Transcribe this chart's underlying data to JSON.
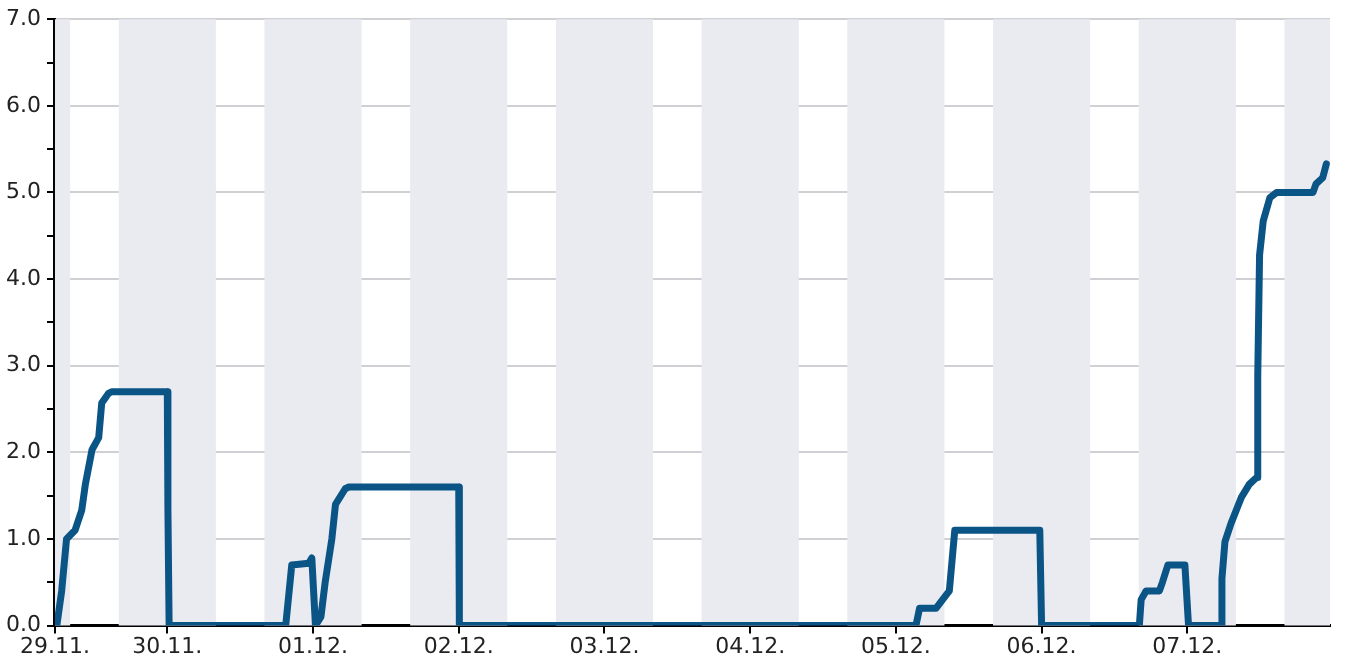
{
  "chart_data": {
    "type": "line",
    "x": [
      "--11-29T05:30",
      "--11-29T05:48",
      "--11-29T06:36",
      "--11-29T07:24",
      "--11-29T08:48",
      "--11-29T09:54",
      "--11-29T10:30",
      "--11-29T11:36",
      "--11-29T12:42",
      "--11-29T13:12",
      "--11-29T14:18",
      "--11-29T14:54",
      "--11-30T00:00",
      "--11-30T00:06",
      "--11-30T00:18",
      "--11-30T19:30",
      "--11-30T20:30",
      "--11-30T23:18",
      "--11-30T23:48",
      "--12-01T00:24",
      "--12-01T01:18",
      "--12-01T02:00",
      "--12-01T03:06",
      "--12-01T03:42",
      "--12-01T04:36",
      "--12-01T05:18",
      "--12-01T05:54",
      "--12-02T00:00",
      "--12-02T00:06",
      "--12-05T03:18",
      "--12-05T03:54",
      "--12-05T06:36",
      "--12-05T07:42",
      "--12-05T08:48",
      "--12-05T09:42",
      "--12-05T23:42",
      "--12-06T00:00",
      "--12-06T16:06",
      "--12-06T16:24",
      "--12-06T17:12",
      "--12-06T19:24",
      "--12-06T19:54",
      "--12-06T20:48",
      "--12-06T23:36",
      "--12-07T00:12",
      "--12-07T05:36",
      "--12-07T05:42",
      "--12-07T06:12",
      "--12-07T07:12",
      "--12-07T08:54",
      "--12-07T10:12",
      "--12-07T11:24",
      "--12-07T11:36",
      "--12-07T11:54",
      "--12-07T12:30",
      "--12-07T13:36",
      "--12-07T14:42",
      "--12-07T20:42",
      "--12-07T21:12",
      "--12-07T22:18",
      "--12-07T22:54"
    ],
    "series": [
      {
        "color": "#0b5486",
        "values": [
          0,
          0,
          0.4,
          1.0,
          1.1,
          1.33,
          1.63,
          2.03,
          2.17,
          2.57,
          2.68,
          2.7,
          2.7,
          1.35,
          0,
          0,
          0.7,
          0.72,
          0.78,
          0,
          0.1,
          0.5,
          1.0,
          1.4,
          1.5,
          1.58,
          1.6,
          1.6,
          0,
          0,
          0.2,
          0.2,
          0.3,
          0.4,
          1.1,
          1.1,
          0,
          0,
          0.3,
          0.4,
          0.4,
          0.5,
          0.7,
          0.7,
          0,
          0,
          0.54,
          0.97,
          1.18,
          1.48,
          1.63,
          1.71,
          2.88,
          4.28,
          4.67,
          4.94,
          5.0,
          5.0,
          5.1,
          5.17,
          5.33
        ]
      }
    ],
    "xlim": [
      "--11-29T05:30",
      "--12-07T23:30"
    ],
    "xticks": [
      {
        "value": "--11-29T05:30",
        "label": "29.11."
      },
      {
        "value": "--11-30",
        "label": "30.11."
      },
      {
        "value": "--12-01",
        "label": "01.12."
      },
      {
        "value": "--12-02",
        "label": "02.12."
      },
      {
        "value": "--12-03",
        "label": "03.12."
      },
      {
        "value": "--12-04",
        "label": "04.12."
      },
      {
        "value": "--12-05",
        "label": "05.12."
      },
      {
        "value": "--12-06",
        "label": "06.12."
      },
      {
        "value": "--12-07",
        "label": "07.12."
      }
    ],
    "ylim": [
      0,
      7
    ],
    "yticks": [
      {
        "value": 0,
        "label": "0.0"
      },
      {
        "value": 0.5,
        "label": null
      },
      {
        "value": 1,
        "label": "1.0"
      },
      {
        "value": 1.5,
        "label": null
      },
      {
        "value": 2,
        "label": "2.0"
      },
      {
        "value": 2.5,
        "label": null
      },
      {
        "value": 3,
        "label": "3.0"
      },
      {
        "value": 3.5,
        "label": null
      },
      {
        "value": 4,
        "label": "4.0"
      },
      {
        "value": 4.5,
        "label": null
      },
      {
        "value": 5,
        "label": "5.0"
      },
      {
        "value": 5.5,
        "label": null
      },
      {
        "value": 6,
        "label": "6.0"
      },
      {
        "value": 6.5,
        "label": null
      },
      {
        "value": 7,
        "label": "7.0"
      }
    ],
    "bands": [
      {
        "axis": "x",
        "from": "--11-29T05:30",
        "to": "--11-29T08:00",
        "color": "#e9ebf1"
      },
      {
        "axis": "x",
        "from": "--11-29T16:00",
        "to": "--11-30T08:00",
        "color": "#e9ebf1"
      },
      {
        "axis": "x",
        "from": "--11-30T16:00",
        "to": "--12-01T08:00",
        "color": "#e9ebf1"
      },
      {
        "axis": "x",
        "from": "--12-01T16:00",
        "to": "--12-02T08:00",
        "color": "#e9ebf1"
      },
      {
        "axis": "x",
        "from": "--12-02T16:00",
        "to": "--12-03T08:00",
        "color": "#e9ebf1"
      },
      {
        "axis": "x",
        "from": "--12-03T16:00",
        "to": "--12-04T08:00",
        "color": "#e9ebf1"
      },
      {
        "axis": "x",
        "from": "--12-04T16:00",
        "to": "--12-05T08:00",
        "color": "#e9ebf1"
      },
      {
        "axis": "x",
        "from": "--12-05T16:00",
        "to": "--12-06T08:00",
        "color": "#e9ebf1"
      },
      {
        "axis": "x",
        "from": "--12-06T16:00",
        "to": "--12-07T08:00",
        "color": "#e9ebf1"
      },
      {
        "axis": "x",
        "from": "--12-07T16:00",
        "to": "--12-07T23:30",
        "color": "#e9ebf1"
      }
    ],
    "grid": true,
    "legend": false,
    "marker": "none",
    "line_style": "solid"
  }
}
